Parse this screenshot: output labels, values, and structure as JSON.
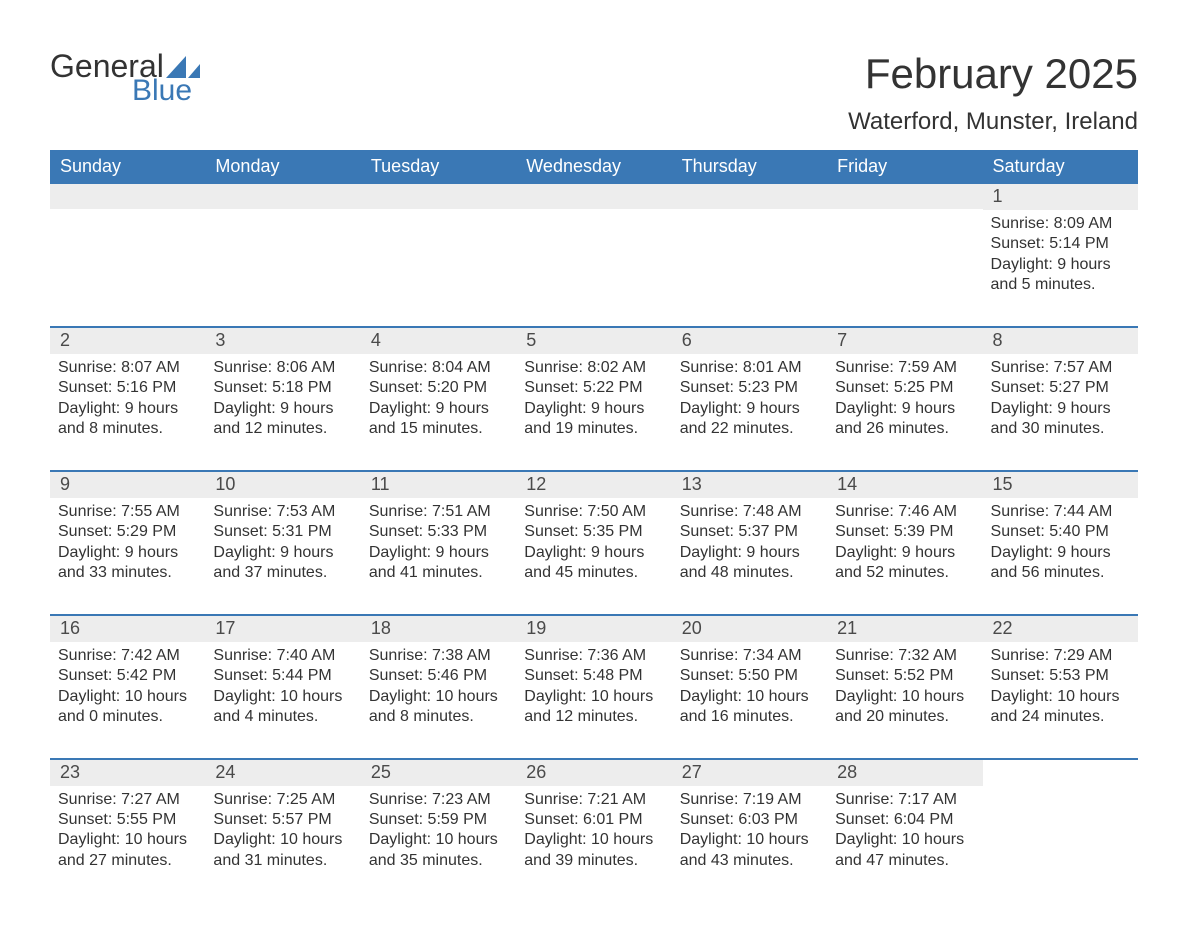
{
  "logo": {
    "text_general": "General",
    "text_blue": "Blue",
    "sail_color": "#3a78b5"
  },
  "title": {
    "month": "February 2025",
    "location": "Waterford, Munster, Ireland"
  },
  "colors": {
    "header_bg": "#3a78b5",
    "header_text": "#ffffff",
    "daynum_bg": "#ededed",
    "week_border": "#3a78b5",
    "body_text": "#333333"
  },
  "fonts": {
    "title_size_pt": 32,
    "location_size_pt": 18,
    "dow_size_pt": 14,
    "body_size_pt": 12
  },
  "days_of_week": [
    "Sunday",
    "Monday",
    "Tuesday",
    "Wednesday",
    "Thursday",
    "Friday",
    "Saturday"
  ],
  "weeks": [
    [
      null,
      null,
      null,
      null,
      null,
      null,
      {
        "n": "1",
        "sunrise": "8:09 AM",
        "sunset": "5:14 PM",
        "daylight": "9 hours and 5 minutes."
      }
    ],
    [
      {
        "n": "2",
        "sunrise": "8:07 AM",
        "sunset": "5:16 PM",
        "daylight": "9 hours and 8 minutes."
      },
      {
        "n": "3",
        "sunrise": "8:06 AM",
        "sunset": "5:18 PM",
        "daylight": "9 hours and 12 minutes."
      },
      {
        "n": "4",
        "sunrise": "8:04 AM",
        "sunset": "5:20 PM",
        "daylight": "9 hours and 15 minutes."
      },
      {
        "n": "5",
        "sunrise": "8:02 AM",
        "sunset": "5:22 PM",
        "daylight": "9 hours and 19 minutes."
      },
      {
        "n": "6",
        "sunrise": "8:01 AM",
        "sunset": "5:23 PM",
        "daylight": "9 hours and 22 minutes."
      },
      {
        "n": "7",
        "sunrise": "7:59 AM",
        "sunset": "5:25 PM",
        "daylight": "9 hours and 26 minutes."
      },
      {
        "n": "8",
        "sunrise": "7:57 AM",
        "sunset": "5:27 PM",
        "daylight": "9 hours and 30 minutes."
      }
    ],
    [
      {
        "n": "9",
        "sunrise": "7:55 AM",
        "sunset": "5:29 PM",
        "daylight": "9 hours and 33 minutes."
      },
      {
        "n": "10",
        "sunrise": "7:53 AM",
        "sunset": "5:31 PM",
        "daylight": "9 hours and 37 minutes."
      },
      {
        "n": "11",
        "sunrise": "7:51 AM",
        "sunset": "5:33 PM",
        "daylight": "9 hours and 41 minutes."
      },
      {
        "n": "12",
        "sunrise": "7:50 AM",
        "sunset": "5:35 PM",
        "daylight": "9 hours and 45 minutes."
      },
      {
        "n": "13",
        "sunrise": "7:48 AM",
        "sunset": "5:37 PM",
        "daylight": "9 hours and 48 minutes."
      },
      {
        "n": "14",
        "sunrise": "7:46 AM",
        "sunset": "5:39 PM",
        "daylight": "9 hours and 52 minutes."
      },
      {
        "n": "15",
        "sunrise": "7:44 AM",
        "sunset": "5:40 PM",
        "daylight": "9 hours and 56 minutes."
      }
    ],
    [
      {
        "n": "16",
        "sunrise": "7:42 AM",
        "sunset": "5:42 PM",
        "daylight": "10 hours and 0 minutes."
      },
      {
        "n": "17",
        "sunrise": "7:40 AM",
        "sunset": "5:44 PM",
        "daylight": "10 hours and 4 minutes."
      },
      {
        "n": "18",
        "sunrise": "7:38 AM",
        "sunset": "5:46 PM",
        "daylight": "10 hours and 8 minutes."
      },
      {
        "n": "19",
        "sunrise": "7:36 AM",
        "sunset": "5:48 PM",
        "daylight": "10 hours and 12 minutes."
      },
      {
        "n": "20",
        "sunrise": "7:34 AM",
        "sunset": "5:50 PM",
        "daylight": "10 hours and 16 minutes."
      },
      {
        "n": "21",
        "sunrise": "7:32 AM",
        "sunset": "5:52 PM",
        "daylight": "10 hours and 20 minutes."
      },
      {
        "n": "22",
        "sunrise": "7:29 AM",
        "sunset": "5:53 PM",
        "daylight": "10 hours and 24 minutes."
      }
    ],
    [
      {
        "n": "23",
        "sunrise": "7:27 AM",
        "sunset": "5:55 PM",
        "daylight": "10 hours and 27 minutes."
      },
      {
        "n": "24",
        "sunrise": "7:25 AM",
        "sunset": "5:57 PM",
        "daylight": "10 hours and 31 minutes."
      },
      {
        "n": "25",
        "sunrise": "7:23 AM",
        "sunset": "5:59 PM",
        "daylight": "10 hours and 35 minutes."
      },
      {
        "n": "26",
        "sunrise": "7:21 AM",
        "sunset": "6:01 PM",
        "daylight": "10 hours and 39 minutes."
      },
      {
        "n": "27",
        "sunrise": "7:19 AM",
        "sunset": "6:03 PM",
        "daylight": "10 hours and 43 minutes."
      },
      {
        "n": "28",
        "sunrise": "7:17 AM",
        "sunset": "6:04 PM",
        "daylight": "10 hours and 47 minutes."
      },
      null
    ]
  ],
  "labels": {
    "sunrise": "Sunrise: ",
    "sunset": "Sunset: ",
    "daylight": "Daylight: "
  }
}
